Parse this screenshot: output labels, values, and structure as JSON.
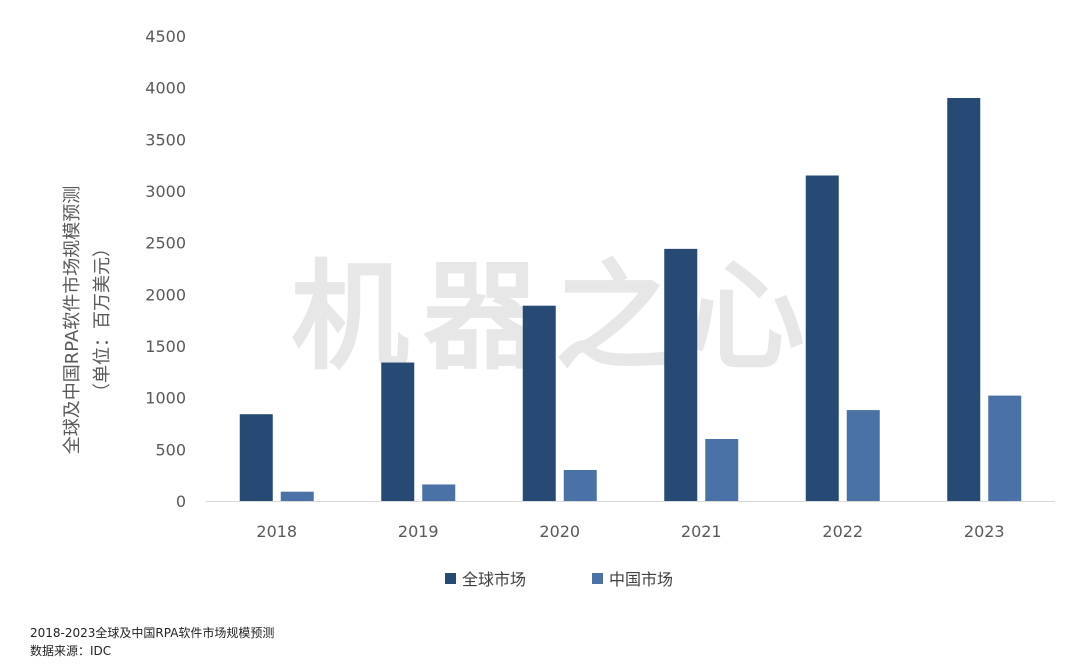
{
  "watermark": "机器之心",
  "chart_data": {
    "type": "bar",
    "categories": [
      "2018",
      "2019",
      "2020",
      "2021",
      "2022",
      "2023"
    ],
    "series": [
      {
        "name": "全球市场",
        "values": [
          840,
          1340,
          1890,
          2440,
          3150,
          3900
        ],
        "color": "#264a74"
      },
      {
        "name": "中国市场",
        "values": [
          90,
          160,
          300,
          600,
          880,
          1020
        ],
        "color": "#4a72a6"
      }
    ],
    "ylabel_lines": [
      "全球及中国RPA软件市场规模预测",
      "（单位：百万美元）"
    ],
    "ylim": [
      0,
      4500
    ],
    "yticks": [
      0,
      500,
      1000,
      1500,
      2000,
      2500,
      3000,
      3500,
      4000,
      4500
    ],
    "grid": false,
    "legend_position": "bottom"
  },
  "footer": {
    "caption": "2018-2023全球及中国RPA软件市场规模预测",
    "source": "数据来源：IDC"
  }
}
